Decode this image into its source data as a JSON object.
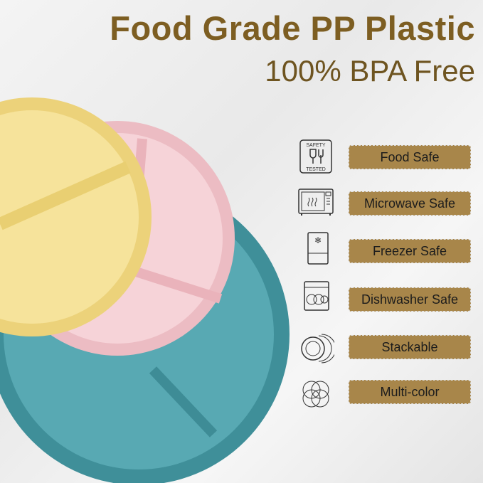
{
  "headline": "Food Grade PP Plastic",
  "subheadline": "100% BPA Free",
  "colors": {
    "accent_gold": "#a8864a",
    "title_brown": "#7d5e22",
    "plate_yellow": "#f3df8e",
    "plate_pink": "#f2c9cf",
    "plate_teal": "#4f9ea8"
  },
  "features": [
    {
      "label": "Food Safe",
      "icon": "safety-tested-icon",
      "icon_text_top": "SAFETY",
      "icon_text_bottom": "TESTED"
    },
    {
      "label": "Microwave Safe",
      "icon": "microwave-icon"
    },
    {
      "label": "Freezer Safe",
      "icon": "freezer-icon"
    },
    {
      "label": "Dishwasher Safe",
      "icon": "dishwasher-icon"
    },
    {
      "label": "Stackable",
      "icon": "stacked-plates-icon"
    },
    {
      "label": "Multi-color",
      "icon": "multi-color-circles-icon"
    }
  ]
}
